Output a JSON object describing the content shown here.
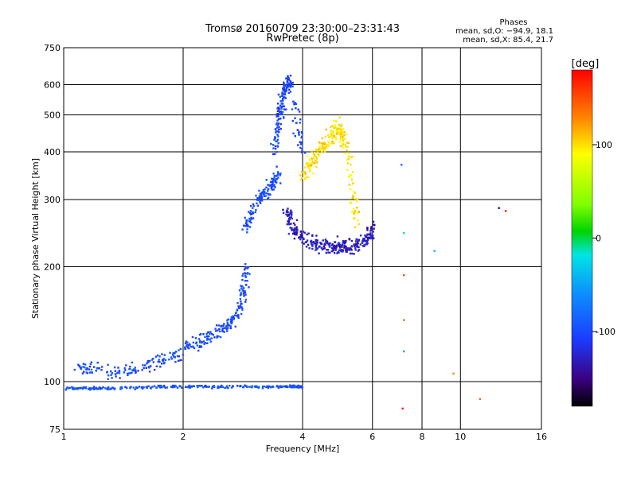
{
  "chart_data": {
    "type": "scatter",
    "title": "Tromsø 20160709 23:30:00–23:31:43",
    "subtitle": "RwPretec (8p)",
    "xlabel": "Frequency [MHz]",
    "ylabel": "Stationary phase Virtual Height [km]",
    "x_scale": "log",
    "y_scale": "log",
    "xlim": [
      1,
      16
    ],
    "ylim": [
      75,
      750
    ],
    "x_ticks": [
      1,
      2,
      4,
      6,
      8,
      10,
      16
    ],
    "y_ticks": [
      75,
      100,
      200,
      300,
      400,
      500,
      600,
      750
    ],
    "grid": true,
    "colorbar": {
      "label": "[deg]",
      "range": [
        -180,
        180
      ],
      "ticks": [
        100,
        0,
        -100
      ]
    },
    "stats": {
      "header": "Phases",
      "line_o": "mean, sd,O: −94.9, 18.1",
      "line_x": "mean, sd,X:  85.4, 21.7"
    },
    "traces": [
      {
        "desc": "sporadic E trace",
        "f": [
          1.0,
          1.3,
          1.8,
          2.5,
          3.5,
          4.0
        ],
        "h": [
          96,
          96,
          97,
          97,
          97,
          97
        ],
        "phase": -95
      },
      {
        "desc": "F1 trace",
        "f": [
          1.05,
          1.35,
          1.65,
          2.0,
          2.3,
          2.6,
          2.8,
          2.9
        ],
        "h": [
          110,
          106,
          110,
          120,
          130,
          140,
          160,
          200
        ],
        "phase": -100
      },
      {
        "desc": "F2 O-mode lower",
        "f": [
          2.85,
          3.1,
          3.3,
          3.5
        ],
        "h": [
          250,
          300,
          320,
          350
        ],
        "phase": -100
      },
      {
        "desc": "F2 O-mode upper",
        "f": [
          3.4,
          3.5,
          3.6,
          3.7,
          4.0
        ],
        "h": [
          400,
          500,
          580,
          620,
          400
        ],
        "phase": -105
      },
      {
        "desc": "F2 X-mode curve",
        "f": [
          3.65,
          3.8,
          4.2,
          4.6,
          5.0,
          5.4,
          5.8,
          6.0
        ],
        "h": [
          280,
          250,
          232,
          226,
          225,
          225,
          235,
          250
        ],
        "phase": -130
      },
      {
        "desc": "X-mode yellow branch",
        "f": [
          4.0,
          4.3,
          4.6,
          4.9,
          5.2,
          5.5
        ],
        "h": [
          340,
          390,
          420,
          470,
          400,
          255
        ],
        "phase": 100
      }
    ],
    "isolated_points": [
      {
        "f": 7.1,
        "h": 370,
        "phase": -80
      },
      {
        "f": 7.2,
        "h": 245,
        "phase": -20
      },
      {
        "f": 7.2,
        "h": 190,
        "phase": 150
      },
      {
        "f": 7.2,
        "h": 145,
        "phase": 140
      },
      {
        "f": 7.2,
        "h": 120,
        "phase": -50
      },
      {
        "f": 7.15,
        "h": 85,
        "phase": 170
      },
      {
        "f": 8.6,
        "h": 220,
        "phase": -40
      },
      {
        "f": 9.6,
        "h": 105,
        "phase": 130
      },
      {
        "f": 12.5,
        "h": 285,
        "phase": -150
      },
      {
        "f": 13.0,
        "h": 280,
        "phase": 170
      },
      {
        "f": 11.2,
        "h": 90,
        "phase": 140
      }
    ]
  }
}
